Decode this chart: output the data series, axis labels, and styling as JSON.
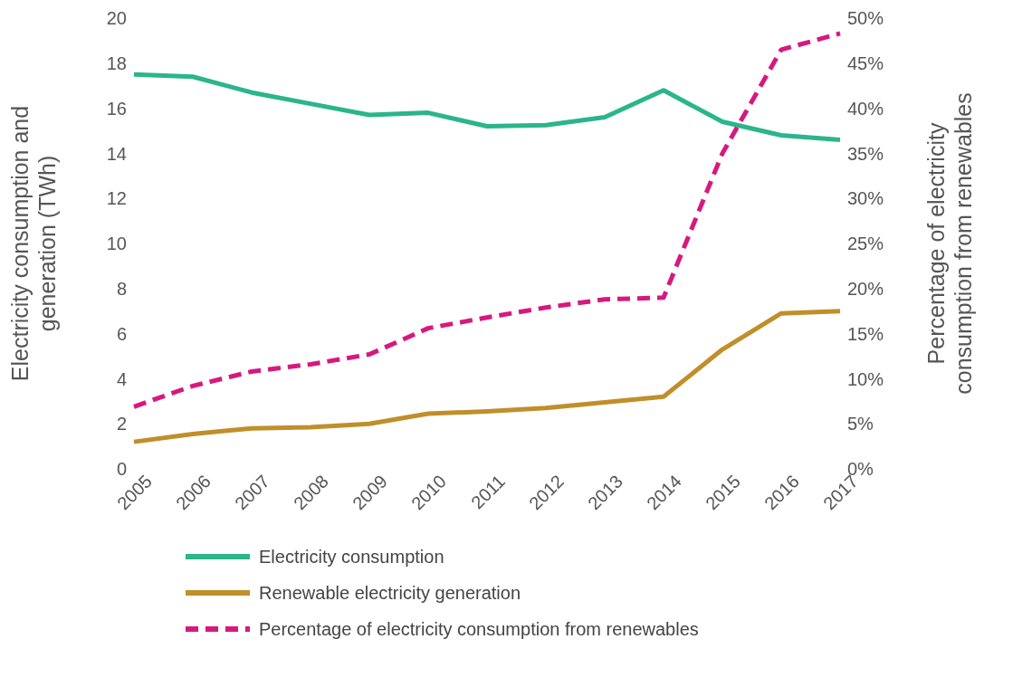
{
  "chart_data": {
    "type": "line",
    "ylabel": "Electricity consumption and generation (TWh)",
    "y2label": "Percentage of electricity consumption from renewables",
    "categories": [
      "2005",
      "2006",
      "2007",
      "2008",
      "2009",
      "2010",
      "2011",
      "2012",
      "2013",
      "2014",
      "2015",
      "2016",
      "2017"
    ],
    "series": [
      {
        "name": "Electricity consumption",
        "color": "#2bb58a",
        "values": [
          17.5,
          17.4,
          16.7,
          16.2,
          15.7,
          15.8,
          15.2,
          15.25,
          15.6,
          16.8,
          15.4,
          14.8,
          14.6
        ]
      },
      {
        "name": "Renewable electricity generation",
        "color": "#c08f2a",
        "values": [
          1.2,
          1.55,
          1.8,
          1.85,
          2.0,
          2.45,
          2.55,
          2.7,
          2.95,
          3.2,
          5.3,
          6.9,
          7.0
        ]
      },
      {
        "name": "Percentage of electricity consumption from renewables",
        "color": "#d6197f",
        "axis": "y2",
        "line_style": "dashed",
        "values": [
          6.9,
          9.2,
          10.8,
          11.6,
          12.7,
          15.6,
          16.8,
          17.9,
          18.8,
          19.0,
          35,
          46.5,
          48.3
        ]
      }
    ],
    "ylim": [
      0,
      20
    ],
    "yticks": [
      0,
      2,
      4,
      6,
      8,
      10,
      12,
      14,
      16,
      18,
      20
    ],
    "y2lim": [
      0,
      50
    ],
    "y2ticks": [
      {
        "value": 0,
        "label": "0%"
      },
      {
        "value": 5,
        "label": "5%"
      },
      {
        "value": 10,
        "label": "10%"
      },
      {
        "value": 15,
        "label": "15%"
      },
      {
        "value": 20,
        "label": "20%"
      },
      {
        "value": 25,
        "label": "25%"
      },
      {
        "value": 30,
        "label": "30%"
      },
      {
        "value": 35,
        "label": "35%"
      },
      {
        "value": 40,
        "label": "40%"
      },
      {
        "value": 45,
        "label": "45%"
      },
      {
        "value": 50,
        "label": "50%"
      }
    ],
    "grid": false,
    "legend": "bottom",
    "marker": "none"
  }
}
